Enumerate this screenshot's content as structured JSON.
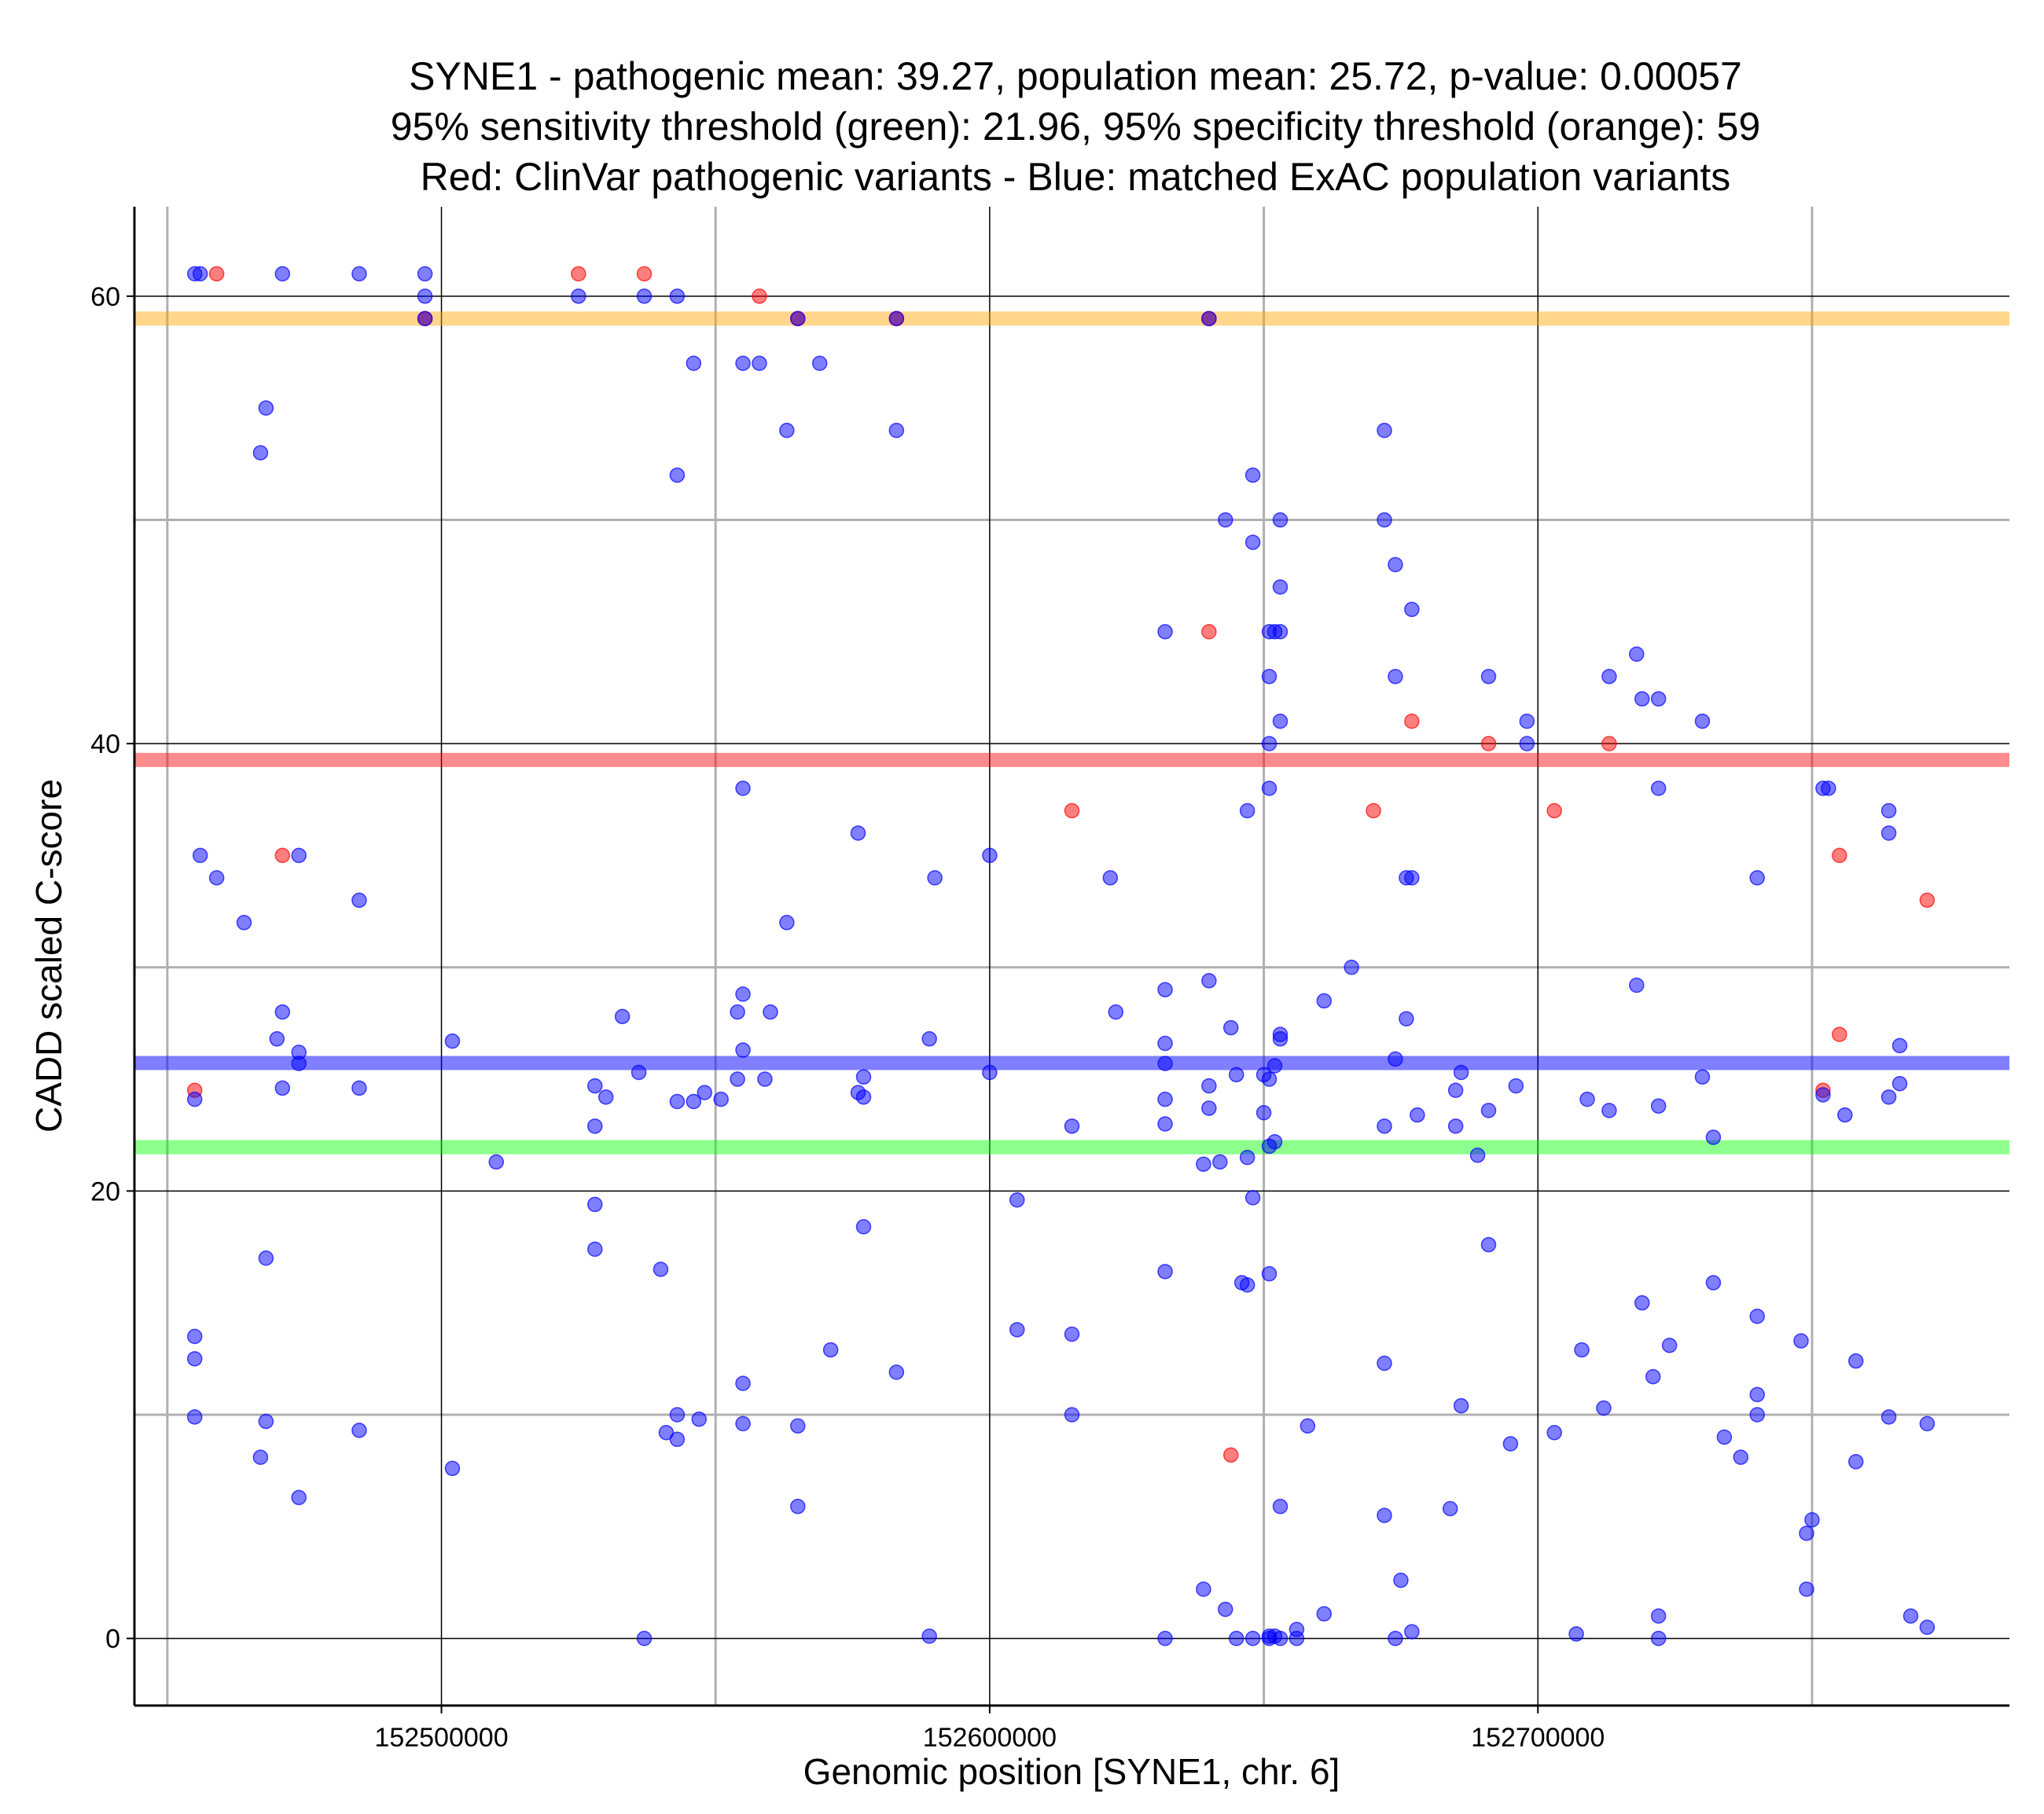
{
  "chart_data": {
    "type": "scatter",
    "title_lines": [
      "SYNE1 - pathogenic mean: 39.27, population mean: 25.72, p-value: 0.00057",
      "95% sensitivity threshold (green): 21.96, 95% specificity threshold (orange): 59",
      "Red: ClinVar pathogenic variants - Blue: matched ExAC population variants"
    ],
    "xlabel": "Genomic position [SYNE1, chr. 6]",
    "ylabel": "CADD scaled C-score",
    "xlim": [
      152444000,
      152786000
    ],
    "ylim": [
      -3,
      64
    ],
    "x_ticks": [
      152500000,
      152600000,
      152700000
    ],
    "x_tick_labels": [
      "152500000",
      "152600000",
      "152700000"
    ],
    "x_minor_grid": [
      152450000,
      152550000,
      152650000,
      152750000
    ],
    "y_ticks": [
      0,
      20,
      40,
      60
    ],
    "y_tick_labels": [
      "0",
      "20",
      "40",
      "60"
    ],
    "y_minor_grid": [
      10,
      30,
      50
    ],
    "horizontal_lines": [
      {
        "name": "specificity-threshold",
        "value": 59,
        "color": "#FFA500",
        "opacity": 0.45
      },
      {
        "name": "pathogenic-mean",
        "value": 39.27,
        "color": "#FF0000",
        "opacity": 0.45
      },
      {
        "name": "population-mean",
        "value": 25.72,
        "color": "#0000FF",
        "opacity": 0.5
      },
      {
        "name": "sensitivity-threshold",
        "value": 21.96,
        "color": "#00FF00",
        "opacity": 0.45
      }
    ],
    "series": [
      {
        "name": "ClinVar pathogenic variants",
        "color": "#FF0000",
        "points": [
          [
            152459000,
            61
          ],
          [
            152525000,
            61
          ],
          [
            152537000,
            61
          ],
          [
            152558000,
            60
          ],
          [
            152565000,
            59
          ],
          [
            152583000,
            59
          ],
          [
            152640000,
            59
          ],
          [
            152497000,
            59
          ],
          [
            152640000,
            45
          ],
          [
            152677000,
            41
          ],
          [
            152691000,
            40
          ],
          [
            152713000,
            40
          ],
          [
            152615000,
            37
          ],
          [
            152670000,
            37
          ],
          [
            152703000,
            37
          ],
          [
            152471000,
            35
          ],
          [
            152755000,
            35
          ],
          [
            152771000,
            33
          ],
          [
            152755000,
            27
          ],
          [
            152752000,
            24.5
          ],
          [
            152455000,
            24.5
          ],
          [
            152644000,
            8.2
          ]
        ]
      },
      {
        "name": "matched ExAC population variants",
        "color": "#0000FF",
        "points": [
          [
            152455000,
            61
          ],
          [
            152456000,
            61
          ],
          [
            152471000,
            61
          ],
          [
            152485000,
            61
          ],
          [
            152497000,
            61
          ],
          [
            152497000,
            60
          ],
          [
            152525000,
            60
          ],
          [
            152537000,
            60
          ],
          [
            152543000,
            60
          ],
          [
            152565000,
            59
          ],
          [
            152583000,
            59
          ],
          [
            152640000,
            59
          ],
          [
            152497000,
            59
          ],
          [
            152546000,
            57
          ],
          [
            152555000,
            57
          ],
          [
            152558000,
            57
          ],
          [
            152569000,
            57
          ],
          [
            152468000,
            55
          ],
          [
            152467000,
            53
          ],
          [
            152563000,
            54
          ],
          [
            152583000,
            54
          ],
          [
            152543000,
            52
          ],
          [
            152648000,
            52
          ],
          [
            152672000,
            54
          ],
          [
            152643000,
            50
          ],
          [
            152653000,
            50
          ],
          [
            152672000,
            50
          ],
          [
            152648000,
            49
          ],
          [
            152674000,
            48
          ],
          [
            152653000,
            47
          ],
          [
            152632000,
            45
          ],
          [
            152651000,
            45
          ],
          [
            152652000,
            45
          ],
          [
            152653000,
            45
          ],
          [
            152677000,
            46
          ],
          [
            152651000,
            43
          ],
          [
            152674000,
            43
          ],
          [
            152691000,
            43
          ],
          [
            152713000,
            43
          ],
          [
            152718000,
            44
          ],
          [
            152719000,
            42
          ],
          [
            152722000,
            42
          ],
          [
            152730000,
            41
          ],
          [
            152698000,
            41
          ],
          [
            152653000,
            41
          ],
          [
            152651000,
            40
          ],
          [
            152698000,
            40
          ],
          [
            152555000,
            38
          ],
          [
            152651000,
            38
          ],
          [
            152722000,
            38
          ],
          [
            152752000,
            38
          ],
          [
            152753000,
            38
          ],
          [
            152647000,
            37
          ],
          [
            152764000,
            37
          ],
          [
            152764000,
            36
          ],
          [
            152576000,
            36
          ],
          [
            152456000,
            35
          ],
          [
            152474000,
            35
          ],
          [
            152600000,
            35
          ],
          [
            152459000,
            34
          ],
          [
            152590000,
            34
          ],
          [
            152622000,
            34
          ],
          [
            152676000,
            34
          ],
          [
            152677000,
            34
          ],
          [
            152740000,
            34
          ],
          [
            152485000,
            33
          ],
          [
            152464000,
            32
          ],
          [
            152563000,
            32
          ],
          [
            152666000,
            30
          ],
          [
            152632000,
            29
          ],
          [
            152640000,
            29.4
          ],
          [
            152718000,
            29.2
          ],
          [
            152555000,
            28.8
          ],
          [
            152471000,
            28
          ],
          [
            152533000,
            27.8
          ],
          [
            152554000,
            28
          ],
          [
            152560000,
            28
          ],
          [
            152623000,
            28
          ],
          [
            152661000,
            28.5
          ],
          [
            152676000,
            27.7
          ],
          [
            152644000,
            27.3
          ],
          [
            152470000,
            26.8
          ],
          [
            152502000,
            26.7
          ],
          [
            152632000,
            26.6
          ],
          [
            152653000,
            27
          ],
          [
            152653000,
            26.8
          ],
          [
            152766000,
            26.5
          ],
          [
            152555000,
            26.3
          ],
          [
            152474000,
            26.2
          ],
          [
            152674000,
            25.9
          ],
          [
            152474000,
            25.7
          ],
          [
            152632000,
            25.7
          ],
          [
            152652000,
            25.6
          ],
          [
            152536000,
            25.3
          ],
          [
            152577000,
            25.1
          ],
          [
            152589000,
            26.8
          ],
          [
            152600000,
            25.3
          ],
          [
            152645000,
            25.2
          ],
          [
            152650000,
            25.2
          ],
          [
            152651000,
            25
          ],
          [
            152686000,
            25.3
          ],
          [
            152730000,
            25.1
          ],
          [
            152559000,
            25
          ],
          [
            152554000,
            25
          ],
          [
            152685000,
            24.5
          ],
          [
            152766000,
            24.8
          ],
          [
            152471000,
            24.6
          ],
          [
            152485000,
            24.6
          ],
          [
            152528000,
            24.7
          ],
          [
            152548000,
            24.4
          ],
          [
            152576000,
            24.4
          ],
          [
            152577000,
            24.2
          ],
          [
            152530000,
            24.2
          ],
          [
            152543000,
            24
          ],
          [
            152546000,
            24
          ],
          [
            152551000,
            24.1
          ],
          [
            152632000,
            24.1
          ],
          [
            152640000,
            24.7
          ],
          [
            152696000,
            24.7
          ],
          [
            152709000,
            24.1
          ],
          [
            152713000,
            23.6
          ],
          [
            152722000,
            23.8
          ],
          [
            152752000,
            24.3
          ],
          [
            152764000,
            24.2
          ],
          [
            152756000,
            23.4
          ],
          [
            152455000,
            24.1
          ],
          [
            152640000,
            23.7
          ],
          [
            152650000,
            23.5
          ],
          [
            152678000,
            23.4
          ],
          [
            152691000,
            23.6
          ],
          [
            152528000,
            22.9
          ],
          [
            152615000,
            22.9
          ],
          [
            152632000,
            23
          ],
          [
            152672000,
            22.9
          ],
          [
            152685000,
            22.9
          ],
          [
            152732000,
            22.4
          ],
          [
            152652000,
            22.2
          ],
          [
            152651000,
            22
          ],
          [
            152689000,
            21.6
          ],
          [
            152647000,
            21.5
          ],
          [
            152642000,
            21.3
          ],
          [
            152639000,
            21.2
          ],
          [
            152510000,
            21.3
          ],
          [
            152605000,
            19.6
          ],
          [
            152648000,
            19.7
          ],
          [
            152528000,
            19.4
          ],
          [
            152577000,
            18.4
          ],
          [
            152528000,
            17.4
          ],
          [
            152691000,
            17.6
          ],
          [
            152468000,
            17
          ],
          [
            152540000,
            16.5
          ],
          [
            152632000,
            16.4
          ],
          [
            152651000,
            16.3
          ],
          [
            152646000,
            15.9
          ],
          [
            152647000,
            15.8
          ],
          [
            152732000,
            15.9
          ],
          [
            152719000,
            15
          ],
          [
            152740000,
            14.4
          ],
          [
            152455000,
            13.5
          ],
          [
            152605000,
            13.8
          ],
          [
            152615000,
            13.6
          ],
          [
            152571000,
            12.9
          ],
          [
            152708000,
            12.9
          ],
          [
            152748000,
            13.3
          ],
          [
            152724000,
            13.1
          ],
          [
            152455000,
            12.5
          ],
          [
            152672000,
            12.3
          ],
          [
            152758000,
            12.4
          ],
          [
            152583000,
            11.9
          ],
          [
            152721000,
            11.7
          ],
          [
            152555000,
            11.4
          ],
          [
            152740000,
            10.9
          ],
          [
            152712000,
            10.3
          ],
          [
            152686000,
            10.4
          ],
          [
            152455000,
            9.9
          ],
          [
            152468000,
            9.7
          ],
          [
            152543000,
            10
          ],
          [
            152547000,
            9.8
          ],
          [
            152555000,
            9.6
          ],
          [
            152615000,
            10
          ],
          [
            152740000,
            10
          ],
          [
            152764000,
            9.9
          ],
          [
            152485000,
            9.3
          ],
          [
            152541000,
            9.2
          ],
          [
            152543000,
            8.9
          ],
          [
            152565000,
            9.5
          ],
          [
            152658000,
            9.5
          ],
          [
            152703000,
            9.2
          ],
          [
            152734000,
            9
          ],
          [
            152771000,
            9.6
          ],
          [
            152695000,
            8.7
          ],
          [
            152467000,
            8.1
          ],
          [
            152737000,
            8.1
          ],
          [
            152758000,
            7.9
          ],
          [
            152502000,
            7.6
          ],
          [
            152474000,
            6.3
          ],
          [
            152565000,
            5.9
          ],
          [
            152653000,
            5.9
          ],
          [
            152684000,
            5.8
          ],
          [
            152672000,
            5.5
          ],
          [
            152750000,
            5.3
          ],
          [
            152749000,
            4.7
          ],
          [
            152749000,
            2.2
          ],
          [
            152639000,
            2.2
          ],
          [
            152675000,
            2.6
          ],
          [
            152643000,
            1.3
          ],
          [
            152661000,
            1.1
          ],
          [
            152722000,
            1
          ],
          [
            152768000,
            1
          ],
          [
            152771000,
            0.5
          ],
          [
            152656000,
            0.4
          ],
          [
            152677000,
            0.3
          ],
          [
            152707000,
            0.2
          ],
          [
            152589000,
            0.1
          ],
          [
            152651000,
            0.1
          ],
          [
            152652000,
            0.1
          ],
          [
            152653000,
            0
          ],
          [
            152645000,
            0
          ],
          [
            152648000,
            0
          ],
          [
            152651000,
            0
          ],
          [
            152656000,
            0
          ],
          [
            152632000,
            0
          ],
          [
            152674000,
            0
          ],
          [
            152722000,
            0
          ],
          [
            152537000,
            0
          ]
        ]
      }
    ]
  }
}
